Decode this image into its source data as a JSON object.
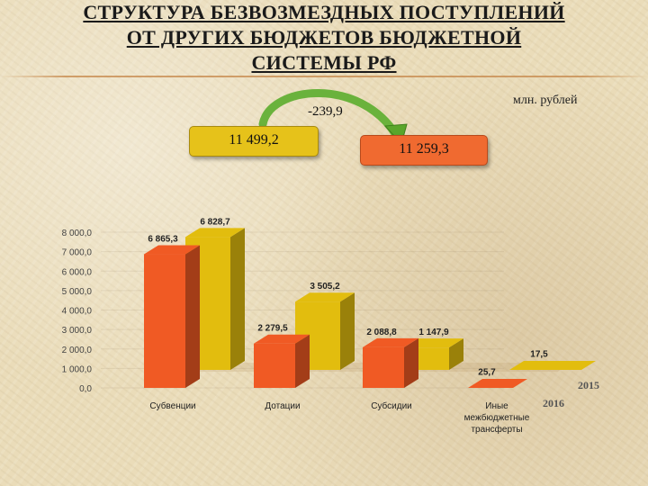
{
  "header": {
    "title_lines": [
      "СТРУКТУРА БЕЗВОЗМЕЗДНЫХ ПОСТУПЛЕНИЙ",
      "ОТ ДРУГИХ БЮДЖЕТОВ БЮДЖЕТНОЙ",
      "СИСТЕМЫ РФ"
    ],
    "unit": "млн. рублей"
  },
  "summary": {
    "total_2015": "11 499,2",
    "total_2016": "11 259,3",
    "change": "-239,9"
  },
  "colors": {
    "series_2016": "#f05a24",
    "series_2015": "#e2bd0e",
    "arrow": "#6ab23c"
  },
  "chart_data": {
    "type": "bar",
    "style": "3d",
    "categories": [
      "Субвенции",
      "Дотации",
      "Субсидии",
      "Иные межбюджетные трансферты"
    ],
    "category_lines": [
      [
        "Субвенции"
      ],
      [
        "Дотации"
      ],
      [
        "Субсидии"
      ],
      [
        "Иные",
        "межбюджетные",
        "трансферты"
      ]
    ],
    "series": [
      {
        "name": "2016",
        "values": [
          6865.3,
          2279.5,
          2088.8,
          25.7
        ],
        "labels": [
          "6 865,3",
          "2 279,5",
          "2 088,8",
          "25,7"
        ]
      },
      {
        "name": "2015",
        "values": [
          6828.7,
          3505.2,
          1147.9,
          17.5
        ],
        "labels": [
          "6 828,7",
          "3 505,2",
          "1 147,9",
          "17,5"
        ]
      }
    ],
    "y_ticks": [
      "0,0",
      "1 000,0",
      "2 000,0",
      "3 000,0",
      "4 000,0",
      "5 000,0",
      "6 000,0",
      "7 000,0",
      "8 000,0"
    ],
    "ylim": [
      0,
      8000
    ]
  }
}
